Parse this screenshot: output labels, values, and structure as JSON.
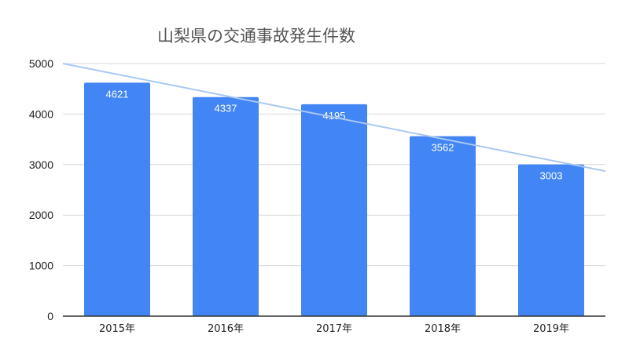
{
  "chart_data": {
    "type": "bar",
    "title": "山梨県の交通事故発生件数",
    "categories": [
      "2015年",
      "2016年",
      "2017年",
      "2018年",
      "2019年"
    ],
    "values": [
      4621,
      4337,
      4195,
      3562,
      3003
    ],
    "data_labels": [
      "4621",
      "4337",
      "4195",
      "3562",
      "3003"
    ],
    "yticks": [
      "0",
      "1000",
      "2000",
      "3000",
      "4000",
      "5000"
    ],
    "ylim": [
      0,
      5000
    ],
    "grid": true,
    "trendline": {
      "type": "linear",
      "start_value": 5000,
      "end_value": 2870
    },
    "colors": {
      "bar": "#4285f4",
      "trend": "#a9c8f2",
      "grid": "#d9d9d9",
      "axis": "#333333"
    }
  }
}
